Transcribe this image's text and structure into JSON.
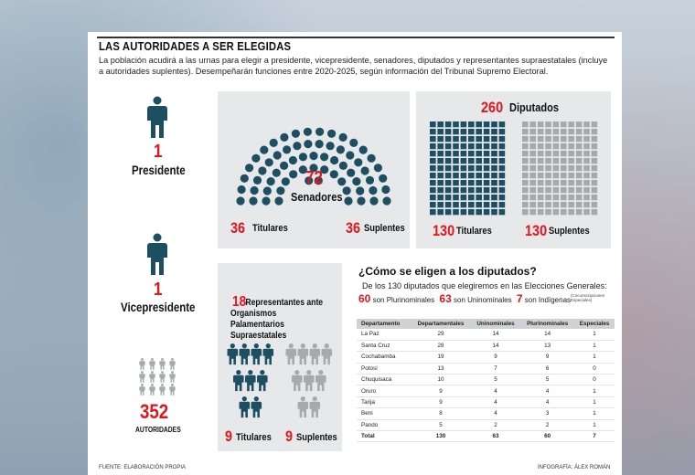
{
  "title": "LAS AUTORIDADES A SER ELEGIDAS",
  "intro": "La población acudirá a las urnas para elegir a presidente, vicepresidente, senadores, diputados y representantes supraestatales (incluye a autoridades suplentes). Desempeñarán funciones entre 2020-2025, según información del Tribunal Supremo Electoral.",
  "colors": {
    "accent": "#e3141b",
    "teal": "#1e4e61",
    "gray": "#a7a9ac",
    "panel": "#e7e8ea"
  },
  "icons": [
    "person-icon",
    "seat-dot-icon"
  ],
  "president": {
    "count": "1",
    "label": "Presidente"
  },
  "vicepresident": {
    "count": "1",
    "label": "Vicepresidente"
  },
  "total": {
    "count": "352",
    "label": "AUTORIDADES"
  },
  "senate": {
    "count": "72",
    "label": "Senadores",
    "titulares_count": "36",
    "titulares_label": "Titulares",
    "suplentes_count": "36",
    "suplentes_label": "Suplentes"
  },
  "deputies": {
    "count": "260",
    "label": "Diputados",
    "titulares_count": "130",
    "titulares_label": "Titulares",
    "suplentes_count": "130",
    "suplentes_label": "Suplentes"
  },
  "supra": {
    "count": "18",
    "label": "Representantes ante Organismos Palamentarios Supraestatales",
    "titulares_count": "9",
    "titulares_label": "Titulares",
    "suplentes_count": "9",
    "suplentes_label": "Suplentes"
  },
  "how": {
    "title": "¿Cómo se eligen a los diputados?",
    "subtitle": "De los 130 diputados que elegiremos en las Elecciones Generales:",
    "pluri_count": "60",
    "pluri_label": "son Plurinominales",
    "uni_count": "63",
    "uni_label": "son Uninominales",
    "ind_count": "7",
    "ind_label": "son Indígenas",
    "ind_note": "(Circunscripciones Especiales)"
  },
  "table": {
    "headers": [
      "Departamento",
      "Departamentales",
      "Uninominales",
      "Plurinominales",
      "Especiales"
    ],
    "rows": [
      [
        "La Paz",
        "29",
        "14",
        "14",
        "1"
      ],
      [
        "Santa Cruz",
        "28",
        "14",
        "13",
        "1"
      ],
      [
        "Cochabamba",
        "19",
        "9",
        "9",
        "1"
      ],
      [
        "Potosí",
        "13",
        "7",
        "6",
        "0"
      ],
      [
        "Chuquisaca",
        "10",
        "5",
        "5",
        "0"
      ],
      [
        "Oruro",
        "9",
        "4",
        "4",
        "1"
      ],
      [
        "Tarija",
        "9",
        "4",
        "4",
        "1"
      ],
      [
        "Beni",
        "8",
        "4",
        "3",
        "1"
      ],
      [
        "Pando",
        "5",
        "2",
        "2",
        "1"
      ]
    ],
    "total": [
      "Total",
      "130",
      "63",
      "60",
      "7"
    ]
  },
  "footer": {
    "source": "FUENTE: ELABORACIÓN PROPIA",
    "credit": "INFOGRAFÍA: ÁLEX ROMÁN"
  }
}
